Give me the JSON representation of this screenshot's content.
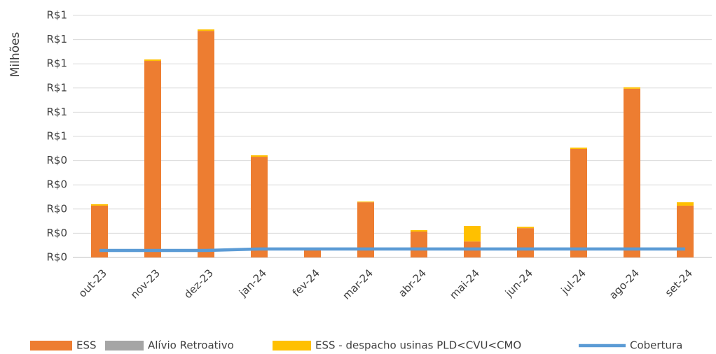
{
  "chart_data": {
    "type": "bar",
    "stacked": true,
    "y_label": "Milhões",
    "categories": [
      "out-23",
      "nov-23",
      "dez-23",
      "jan-24",
      "fev-24",
      "mar-24",
      "abr-24",
      "mai-24",
      "jun-24",
      "jul-24",
      "ago-24",
      "set-24"
    ],
    "series": [
      {
        "name": "ESS",
        "type": "bar",
        "color": "#ed7d31",
        "values": [
          0.214,
          0.812,
          0.936,
          0.416,
          0.035,
          0.228,
          0.107,
          0.066,
          0.121,
          0.448,
          0.697,
          0.214
        ]
      },
      {
        "name": "Alívio Retroativo",
        "type": "bar",
        "color": "#a5a5a5",
        "values": [
          0,
          0,
          0,
          0,
          0,
          0,
          0,
          0,
          0,
          0,
          0,
          0
        ]
      },
      {
        "name": "ESS - despacho usinas PLD<CVU<CMO",
        "type": "bar",
        "color": "#ffc000",
        "values": [
          0.006,
          0.006,
          0.006,
          0.006,
          0,
          0.003,
          0.006,
          0.064,
          0.006,
          0.006,
          0.006,
          0.014
        ]
      },
      {
        "name": "Cobertura",
        "type": "line",
        "color": "#5b9bd5",
        "values": [
          0.029,
          0.029,
          0.029,
          0.035,
          0.035,
          0.035,
          0.035,
          0.035,
          0.035,
          0.035,
          0.035,
          0.035
        ]
      }
    ],
    "ylim": [
      0,
      1.0
    ],
    "yticks": [
      {
        "value": 0,
        "label": "R$0"
      },
      {
        "value": 0.1,
        "label": "R$0"
      },
      {
        "value": 0.2,
        "label": "R$0"
      },
      {
        "value": 0.3,
        "label": "R$0"
      },
      {
        "value": 0.4,
        "label": "R$0"
      },
      {
        "value": 0.5,
        "label": "R$1"
      },
      {
        "value": 0.6,
        "label": "R$1"
      },
      {
        "value": 0.7,
        "label": "R$1"
      },
      {
        "value": 0.8,
        "label": "R$1"
      },
      {
        "value": 0.9,
        "label": "R$1"
      },
      {
        "value": 1.0,
        "label": "R$1"
      }
    ],
    "grid": true,
    "legend": "bottom"
  }
}
